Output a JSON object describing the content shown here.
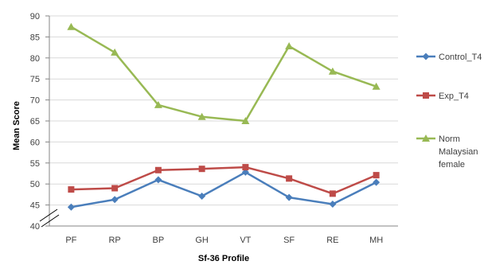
{
  "chart_data": {
    "type": "line",
    "xlabel": "Sf-36 Profile",
    "ylabel": "Mean Score",
    "ylim": [
      40,
      90
    ],
    "yticks": [
      40,
      45,
      50,
      55,
      60,
      65,
      70,
      75,
      80,
      85,
      90
    ],
    "grid": "horizontal",
    "axis_break": "y-axis near 40",
    "legend_position": "right",
    "categories": [
      "PF",
      "RP",
      "BP",
      "GH",
      "VT",
      "SF",
      "RE",
      "MH"
    ],
    "series": [
      {
        "name": "Control_T4",
        "color": "#4a7ebb",
        "marker": "diamond",
        "values": [
          44.5,
          46.3,
          51.0,
          47.1,
          52.8,
          46.8,
          45.2,
          50.4
        ]
      },
      {
        "name": "Exp_T4",
        "color": "#be4b48",
        "marker": "square",
        "values": [
          48.7,
          49.0,
          53.3,
          53.6,
          54.0,
          51.3,
          47.7,
          52.1
        ]
      },
      {
        "name": "Norm Malaysian female",
        "color": "#98b954",
        "marker": "triangle",
        "values": [
          87.4,
          81.3,
          68.8,
          66.0,
          65.0,
          82.8,
          76.8,
          73.2
        ]
      }
    ]
  }
}
